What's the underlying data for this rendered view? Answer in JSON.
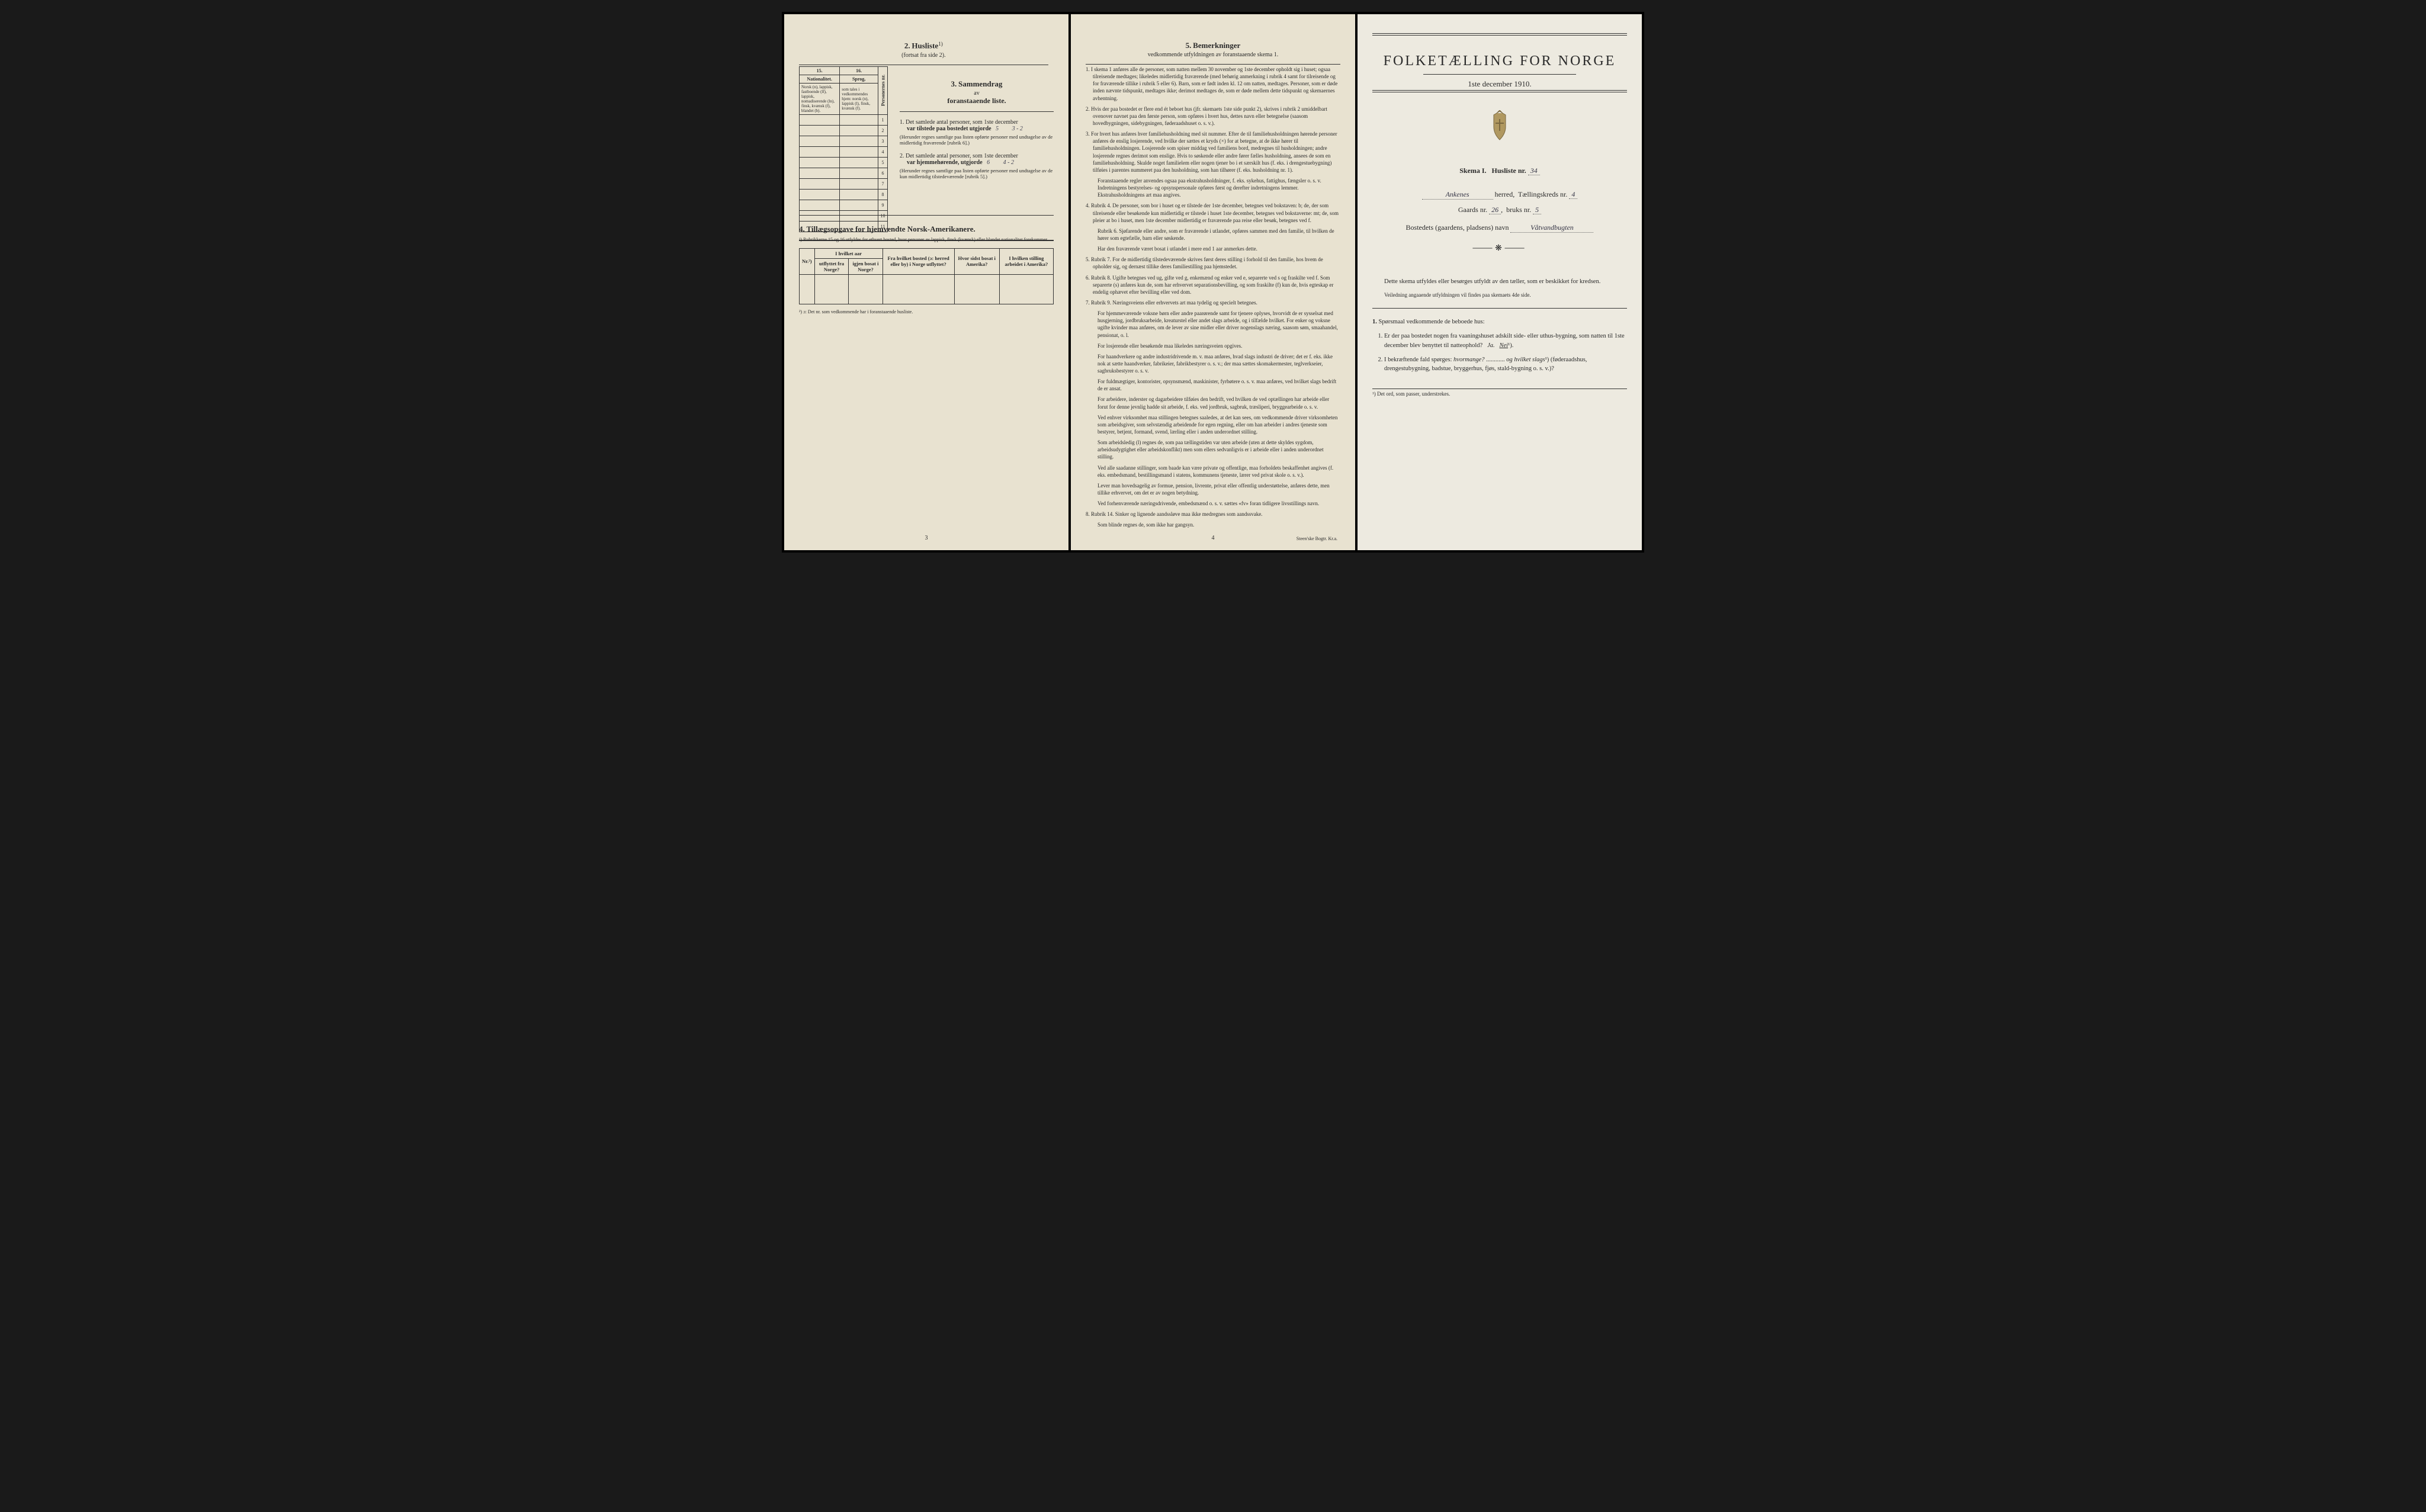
{
  "page_left": {
    "section2": {
      "title_num": "2.",
      "title": "Husliste",
      "sup": "1)",
      "subtitle": "(fortsat fra side 2).",
      "table": {
        "col_nums": [
          "15.",
          "16."
        ],
        "head_row1": "Nationalitet.",
        "head_row2": "Sprog,",
        "cell15": "Norsk (n), lappisk, fastboende (lf), lappisk, nomadiserende (ln), finsk, kvænsk (f), blandet (b).",
        "cell16": "som tales i vedkommendes hjem: norsk (n), lappisk (l), finsk, kvænsk (f).",
        "side_label": "Personernes nr.",
        "row_nums": [
          "1",
          "2",
          "3",
          "4",
          "5",
          "6",
          "7",
          "8",
          "9",
          "10",
          "11"
        ]
      },
      "footnote": "¹) Rubrikkerne 15 og 16 utfyldes for ethvert bosted, hvor personer av lappisk, finsk (kvænsk) eller blandet nationalitet forekommer."
    },
    "section3": {
      "title_num": "3.",
      "title": "Sammendrag",
      "sub1": "av",
      "sub2": "foranstaaende liste.",
      "item1_num": "1.",
      "item1_text": "Det samlede antal personer, som 1ste december",
      "item1_line": "var tilstede paa bostedet utgjorde",
      "item1_val1": "5",
      "item1_val2": "3 - 2",
      "item1_note": "(Herunder regnes samtlige paa listen opførte personer med undtagelse av de midlertidig fraværende [rubrik 6].)",
      "item2_num": "2.",
      "item2_text": "Det samlede antal personer, som 1ste december",
      "item2_line": "var hjemmehørende, utgjorde",
      "item2_val1": "6",
      "item2_val2": "4 - 2",
      "item2_note": "(Herunder regnes samtlige paa listen opførte personer med undtagelse av de kun midlertidig tilstedeværende [rubrik 5].)"
    },
    "section4": {
      "title_num": "4.",
      "title": "Tillægsopgave for hjemvendte Norsk-Amerikanere.",
      "cols": [
        "Nr.²)",
        "I hvilket aar",
        "Fra hvilket bosted (ɔ: herred eller by) i Norge utflyttet?",
        "Hvor sidst bosat i Amerika?",
        "I hvilken stilling arbeidet i Amerika?"
      ],
      "subcols": [
        "utflyttet fra Norge?",
        "igjen bosat i Norge?"
      ],
      "footnote": "²) ɔ: Det nr. som vedkommende har i foranstaaende husliste."
    },
    "page_num": "3"
  },
  "page_middle": {
    "section5": {
      "title_num": "5.",
      "title": "Bemerkninger",
      "subtitle": "vedkommende utfyldningen av foranstaaende skema 1."
    },
    "items": [
      {
        "n": "1.",
        "t": "I skema 1 anføres alle de personer, som natten mellem 30 november og 1ste december opholdt sig i huset; ogsaa tilreisende medtages; likeledes midlertidig fraværende (med behørig anmerkning i rubrik 4 samt for tilreisende og for fraværende tillike i rubrik 5 eller 6). Barn, som er født inden kl. 12 om natten, medtages. Personer, som er døde inden nævnte tidspunkt, medtages ikke; derimot medtages de, som er døde mellem dette tidspunkt og skemaernes avhentning."
      },
      {
        "n": "2.",
        "t": "Hvis der paa bostedet er flere end ét beboet hus (jfr. skemaets 1ste side punkt 2), skrives i rubrik 2 umiddelbart ovenover navnet paa den første person, som opføres i hvert hus, dettes navn eller betegnelse (saasom hovedbygningen, sidebygningen, føderaadshuset o. s. v.)."
      },
      {
        "n": "3.",
        "t": "For hvert hus anføres hver familiehusholdning med sit nummer. Efter de til familiehusholdningen hørende personer anføres de enslig losjerende, ved hvilke der sættes et kryds (×) for at betegne, at de ikke hører til familiehusholdningen. Losjerende som spiser middag ved familiens bord, medregnes til husholdningen; andre losjerende regnes derimot som enslige. Hvis to søskende eller andre fører fælles husholdning, ansees de som en familiehusholdning. Skulde noget familielem eller nogen tjener bo i et særskilt hus (f. eks. i drengestuebygning) tilføies i parentes nummeret paa den husholdning, som han tilhører (f. eks. husholdning nr. 1)."
      },
      {
        "n": "",
        "t": "Foranstaaende regler anvendes ogsaa paa ekstrahusholdninger, f. eks. sykehus, fattighus, fængsler o. s. v. Indretningens bestyrelses- og opsynspersonale opføres først og derefter indretningens lemmer. Ekstrahusholdningens art maa angives.",
        "sub": true
      },
      {
        "n": "4.",
        "t": "Rubrik 4. De personer, som bor i huset og er tilstede der 1ste december, betegnes ved bokstaven: b; de, der som tilreisende eller besøkende kun midlertidig er tilstede i huset 1ste december, betegnes ved bokstaverne: mt; de, som pleier at bo i huset, men 1ste december midlertidig er fraværende paa reise eller besøk, betegnes ved f."
      },
      {
        "n": "",
        "t": "Rubrik 6. Sjøfarende eller andre, som er fraværende i utlandet, opføres sammen med den familie, til hvilken de hører som egtefælle, barn eller søskende.",
        "sub": true
      },
      {
        "n": "",
        "t": "Har den fraværende været bosat i utlandet i mere end 1 aar anmerkes dette.",
        "sub": true
      },
      {
        "n": "5.",
        "t": "Rubrik 7. For de midlertidig tilstedeværende skrives først deres stilling i forhold til den familie, hos hvem de opholder sig, og dernæst tillike deres familiestilling paa hjemstedet."
      },
      {
        "n": "6.",
        "t": "Rubrik 8. Ugifte betegnes ved ug, gifte ved g, enkemænd og enker ved e, separerte ved s og fraskilte ved f. Som separerte (s) anføres kun de, som har erhvervet separationsbevilling, og som fraskilte (f) kun de, hvis egteskap er endelig ophævet efter bevilling eller ved dom."
      },
      {
        "n": "7.",
        "t": "Rubrik 9. Næringsveiens eller erhvervets art maa tydelig og specielt betegnes."
      },
      {
        "n": "",
        "t": "For hjemmeværende voksne børn eller andre paarørende samt for tjenere oplyses, hvorvidt de er sysselsat med husgjerning, jordbruksarbeide, kreaturstel eller andet slags arbeide, og i tilfælde hvilket. For enker og voksne ugifte kvinder maa anføres, om de lever av sine midler eller driver nogenslags næring, saasom søm, smaahandel, pensionat, o. l.",
        "sub": true
      },
      {
        "n": "",
        "t": "For losjerende eller besøkende maa likeledes næringsveien opgives.",
        "sub": true
      },
      {
        "n": "",
        "t": "For haandverkere og andre industridrivende m. v. maa anføres, hvad slags industri de driver; det er f. eks. ikke nok at sætte haandverker, fabrikeier, fabrikbestyrer o. s. v.; der maa sættes skomakermester, teglverkseier, sagbruksbestyrer o. s. v.",
        "sub": true
      },
      {
        "n": "",
        "t": "For fuldmægtiger, kontorister, opsynsmænd, maskinister, fyrbøtere o. s. v. maa anføres, ved hvilket slags bedrift de er ansat.",
        "sub": true
      },
      {
        "n": "",
        "t": "For arbeidere, inderster og dagarbeidere tilføies den bedrift, ved hvilken de ved optællingen har arbeide eller forut for denne jevnlig hadde sit arbeide, f. eks. ved jordbruk, sagbruk, træsliperi, bryggearbeide o. s. v.",
        "sub": true
      },
      {
        "n": "",
        "t": "Ved enhver virksomhet maa stillingen betegnes saaledes, at det kan sees, om vedkommende driver virksomheten som arbeidsgiver, som selvstændig arbeidende for egen regning, eller om han arbeider i andres tjeneste som bestyrer, betjent, formand, svend, lærling eller i anden underordnet stilling.",
        "sub": true
      },
      {
        "n": "",
        "t": "Som arbeidsledig (l) regnes de, som paa tællingstiden var uten arbeide (uten at dette skyldes sygdom, arbeidsudygtighet eller arbeidskonflikt) men som ellers sedvanligvis er i arbeide eller i anden underordnet stilling.",
        "sub": true
      },
      {
        "n": "",
        "t": "Ved alle saadanne stillinger, som baade kan være private og offentlige, maa forholdets beskaffenhet angives (f. eks. embedsmand, bestillingsmand i statens, kommunens tjeneste, lærer ved privat skole o. s. v.).",
        "sub": true
      },
      {
        "n": "",
        "t": "Lever man hovedsagelig av formue, pension, livrente, privat eller offentlig understøttelse, anføres dette, men tillike erhvervet, om det er av nogen betydning.",
        "sub": true
      },
      {
        "n": "",
        "t": "Ved forhenværende næringsdrivende, embedsmænd o. s. v. sættes «fv» foran tidligere livsstillings navn.",
        "sub": true
      },
      {
        "n": "8.",
        "t": "Rubrik 14. Sinker og lignende aandssløve maa ikke medregnes som aandssvake."
      },
      {
        "n": "",
        "t": "Som blinde regnes de, som ikke har gangsyn.",
        "sub": true
      }
    ],
    "page_num": "4",
    "printer": "Steen'ske Bogtr. Kr.a."
  },
  "page_right": {
    "title": "FOLKETÆLLING FOR NORGE",
    "date": "1ste december 1910.",
    "skema_label": "Skema I.",
    "husliste_label": "Husliste nr.",
    "husliste_val": "34",
    "herred_val": "Ankenes",
    "herred_label": "herred,",
    "kreds_label": "Tællingskreds nr.",
    "kreds_val": "4",
    "gaards_label": "Gaards nr.",
    "gaards_val": "26",
    "bruks_label": "bruks nr.",
    "bruks_val": "5",
    "bosted_label": "Bostedets (gaardens, pladsens) navn",
    "bosted_val": "Våtvandbugten",
    "intro1": "Dette skema utfyldes eller besørges utfyldt av den tæller, som er beskikket for kredsen.",
    "intro2": "Veiledning angaaende utfyldningen vil findes paa skemaets 4de side.",
    "q_header_num": "1.",
    "q_header": "Spørsmaal vedkommende de beboede hus:",
    "q1_num": "1.",
    "q1": "Er der paa bostedet nogen fra vaaningshuset adskilt side- eller uthus-bygning, som natten til 1ste december blev benyttet til natteophold?",
    "q1_ja": "Ja.",
    "q1_nei": "Nei",
    "q1_sup": "¹).",
    "q2_num": "2.",
    "q2a": "I bekræftende fald spørges:",
    "q2b": "hvormange?",
    "q2c": "og hvilket slags",
    "q2_sup": "¹)",
    "q2d": "(føderaadshus, drengestubygning, badstue, bryggerhus, fjøs, stald-bygning o. s. v.)?",
    "footnote": "¹) Det ord, som passer, understrekes."
  }
}
